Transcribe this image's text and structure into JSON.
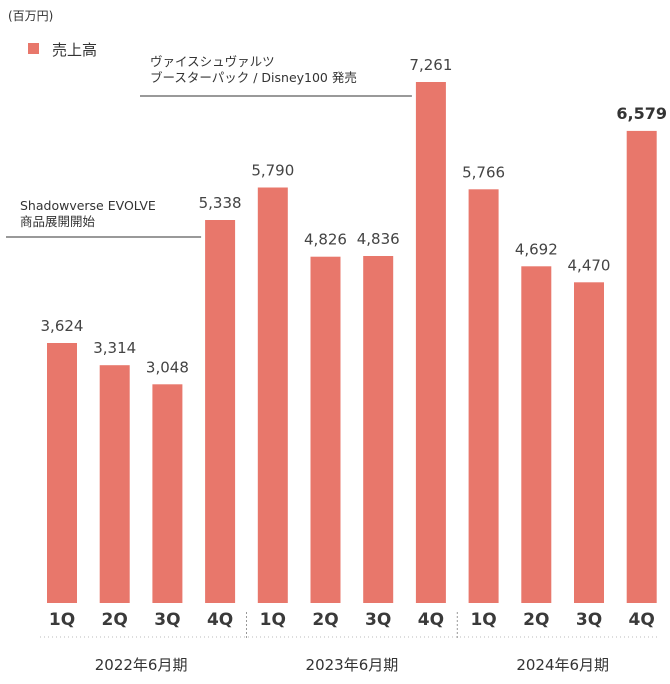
{
  "chart_data": {
    "type": "bar",
    "unit_label": "(百万円)",
    "legend": [
      "売上高"
    ],
    "categories": [
      "1Q",
      "2Q",
      "3Q",
      "4Q",
      "1Q",
      "2Q",
      "3Q",
      "4Q",
      "1Q",
      "2Q",
      "3Q",
      "4Q"
    ],
    "period_labels": [
      "2022年6月期",
      "2023年6月期",
      "2024年6月期"
    ],
    "series": [
      {
        "name": "売上高",
        "values": [
          3624,
          3314,
          3048,
          5338,
          5790,
          4826,
          4836,
          7261,
          5766,
          4692,
          4470,
          6579
        ],
        "value_labels": [
          "3,624",
          "3,314",
          "3,048",
          "5,338",
          "5,790",
          "4,826",
          "4,836",
          "7,261",
          "5,766",
          "4,692",
          "4,470",
          "6,579"
        ]
      }
    ],
    "highlight_last_label": true,
    "annotations": [
      {
        "bar_index": 3,
        "lines": [
          "Shadowverse EVOLVE",
          "商品展開開始"
        ]
      },
      {
        "bar_index": 7,
        "lines": [
          "ヴァイスシュヴァルツ",
          "ブースターパック / Disney100 発売"
        ]
      }
    ],
    "colors": {
      "bar": "#E8776B",
      "divider": "#999999"
    },
    "ylim": [
      0,
      7800
    ],
    "grid": false,
    "legend_position": "top-left"
  }
}
